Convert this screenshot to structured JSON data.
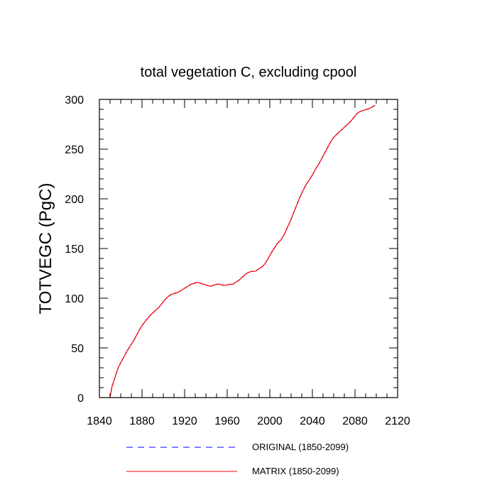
{
  "chart_data": {
    "type": "line",
    "title": "total vegetation C, excluding cpool",
    "xlabel": "",
    "ylabel": "TOTVEGC  (PgC)",
    "xlim": [
      1840,
      2120
    ],
    "ylim": [
      0,
      300
    ],
    "x_ticks": [
      1840,
      1880,
      1920,
      1960,
      2000,
      2040,
      2080,
      2120
    ],
    "y_ticks": [
      0,
      50,
      100,
      150,
      200,
      250,
      300
    ],
    "grid": false,
    "legend_position": "bottom",
    "x": [
      1850,
      1852,
      1854,
      1856,
      1858,
      1860,
      1863,
      1866,
      1869,
      1872,
      1875,
      1878,
      1881,
      1884,
      1887,
      1890,
      1893,
      1896,
      1899,
      1902,
      1905,
      1908,
      1911,
      1914,
      1917,
      1920,
      1923,
      1926,
      1929,
      1932,
      1935,
      1938,
      1941,
      1944,
      1947,
      1950,
      1953,
      1956,
      1959,
      1962,
      1965,
      1968,
      1971,
      1974,
      1977,
      1980,
      1983,
      1986,
      1989,
      1992,
      1995,
      1998,
      2001,
      2004,
      2007,
      2010,
      2013,
      2016,
      2019,
      2022,
      2025,
      2028,
      2031,
      2034,
      2037,
      2040,
      2043,
      2046,
      2049,
      2052,
      2055,
      2058,
      2061,
      2064,
      2067,
      2070,
      2073,
      2076,
      2079,
      2082,
      2085,
      2088,
      2091,
      2094,
      2097,
      2099
    ],
    "series": [
      {
        "name": "ORIGINAL (1850-2099)",
        "color": "#0000ff",
        "dash": "dashed",
        "values": [
          0,
          12,
          18,
          25,
          31,
          35,
          41,
          47,
          52,
          57,
          63,
          69,
          74,
          78,
          82,
          85,
          88,
          91,
          95,
          99,
          102,
          104,
          105,
          106,
          108,
          110,
          112,
          114,
          115,
          116,
          115,
          114,
          113,
          112,
          113,
          114,
          114,
          113,
          113,
          114,
          114,
          116,
          118,
          121,
          124,
          126,
          127,
          127,
          129,
          131,
          134,
          139,
          145,
          150,
          155,
          158,
          163,
          170,
          177,
          185,
          193,
          201,
          208,
          214,
          219,
          224,
          230,
          235,
          241,
          247,
          253,
          259,
          263,
          266,
          269,
          272,
          275,
          278,
          282,
          286,
          288,
          289,
          290,
          291,
          293,
          294
        ]
      },
      {
        "name": "MATRIX (1850-2099)",
        "color": "#ff0000",
        "dash": "solid",
        "values": [
          0,
          12,
          18,
          25,
          31,
          35,
          41,
          47,
          52,
          57,
          63,
          69,
          74,
          78,
          82,
          85,
          88,
          91,
          95,
          99,
          102,
          104,
          105,
          106,
          108,
          110,
          112,
          114,
          115,
          116,
          115,
          114,
          113,
          112,
          113,
          114,
          114,
          113,
          113,
          114,
          114,
          116,
          118,
          121,
          124,
          126,
          127,
          127,
          129,
          131,
          134,
          139,
          145,
          150,
          155,
          158,
          163,
          170,
          177,
          185,
          193,
          201,
          208,
          214,
          219,
          224,
          230,
          235,
          241,
          247,
          253,
          259,
          263,
          266,
          269,
          272,
          275,
          278,
          282,
          286,
          288,
          289,
          290,
          291,
          293,
          294
        ]
      }
    ]
  }
}
